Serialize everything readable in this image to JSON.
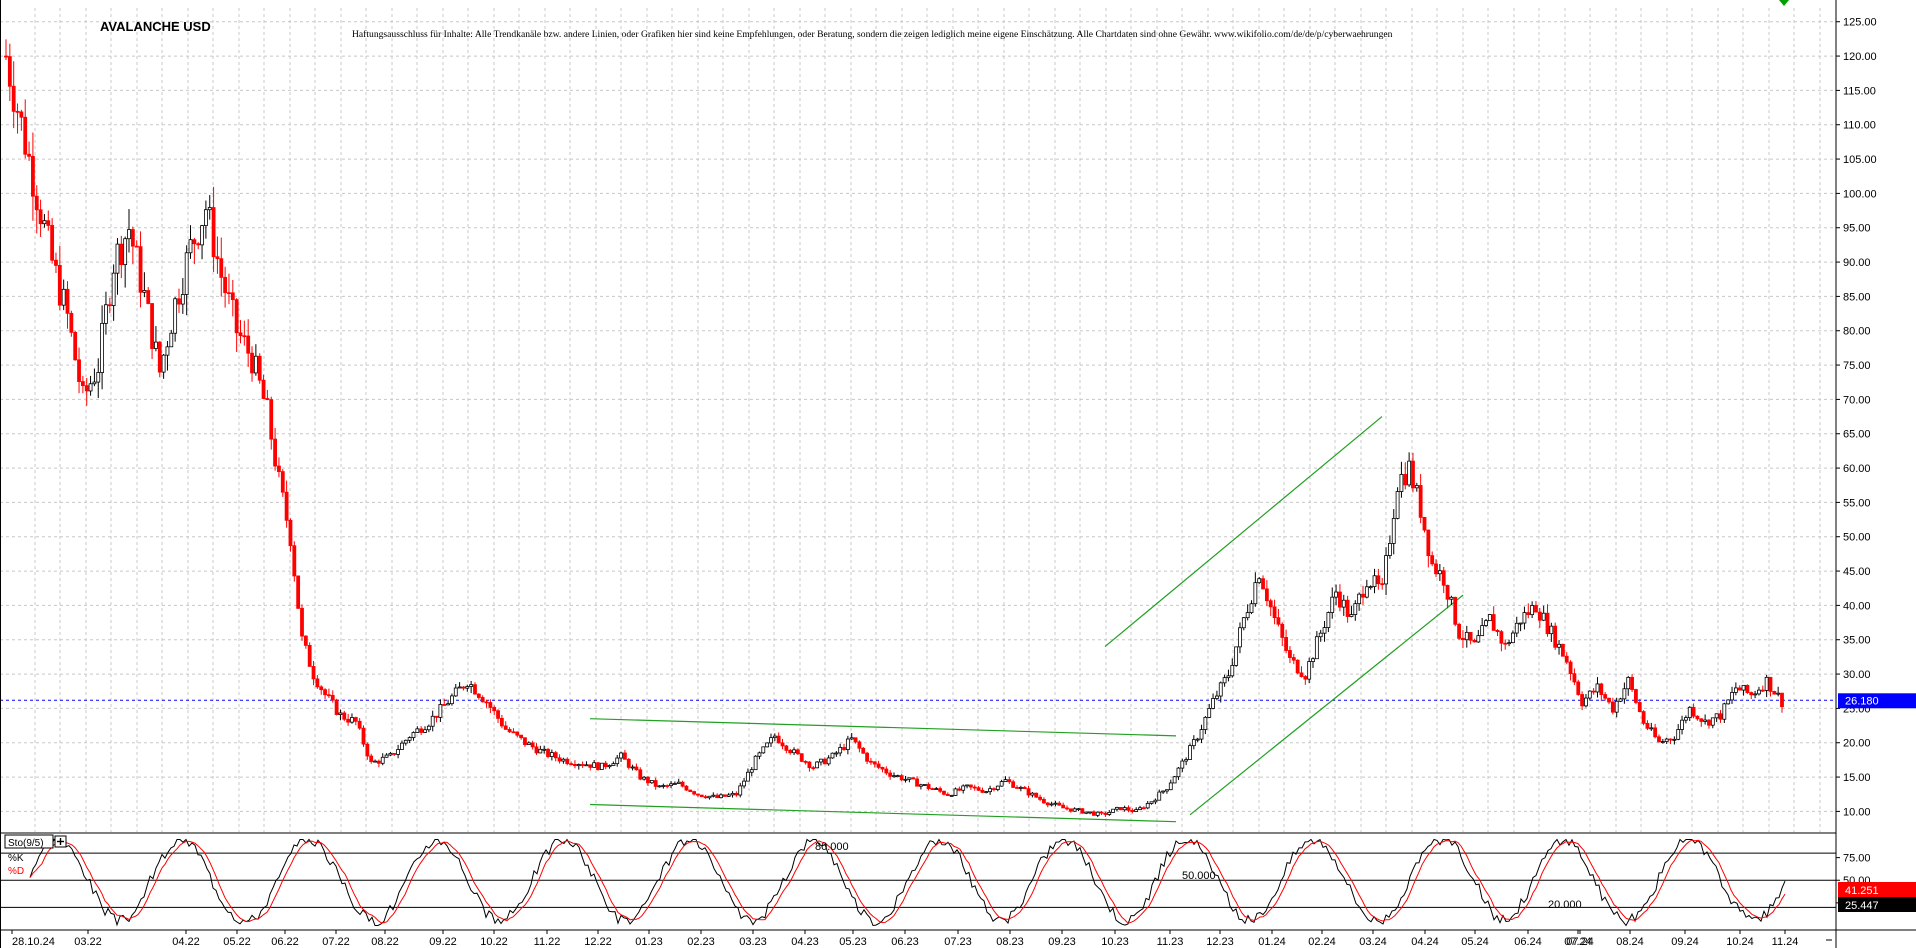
{
  "title": "AVALANCHE USD",
  "disclaimer": "Haftungsausschluss für Inhalte: Alle Trendkanäle bzw. andere Linien, oder Grafiken hier sind keine Empfehlungen, oder Beratung, sondern die zeigen lediglich meine eigene Einschätzung. Alle Chartdaten sind ohne Gewähr. www.wikifolio.com/de/de/p/cyberwaehrungen",
  "colors": {
    "up": "#000000",
    "down": "#ff0000",
    "trend": "#22a022",
    "grid": "#c8c8c8",
    "price_line": "#0000ff",
    "k_line": "#000000",
    "d_line": "#ff0000",
    "marker": "#00a000"
  },
  "chart_data": [
    {
      "type": "candlestick",
      "title": "AVALANCHE USD",
      "y_ticks": [
        "125.00",
        "120.00",
        "115.00",
        "110.00",
        "105.00",
        "100.00",
        "95.00",
        "90.00",
        "85.00",
        "80.00",
        "75.00",
        "70.00",
        "65.00",
        "60.00",
        "55.00",
        "50.00",
        "45.00",
        "40.00",
        "35.00",
        "30.00",
        "25.00",
        "20.00",
        "15.00",
        "10.00"
      ],
      "ylim": [
        7,
        127
      ],
      "x_ticks": [
        "28.10.24",
        "03.22",
        "04.22",
        "05.22",
        "06.22",
        "07.22",
        "08.22",
        "09.22",
        "10.22",
        "11.22",
        "12.22",
        "01.23",
        "02.23",
        "03.23",
        "04.23",
        "05.23",
        "06.23",
        "07.23",
        "08.23",
        "09.23",
        "10.23",
        "11.23",
        "12.23",
        "01.24",
        "02.24",
        "03.24",
        "04.24",
        "05.24",
        "06.24",
        "07.24",
        "07.24",
        "08.24",
        "09.24",
        "10.24",
        "11.24"
      ],
      "last_price": "26.180",
      "last_value": 26.18,
      "trend_lines": [
        {
          "from": [
            "12.22",
            23.5
          ],
          "to": [
            "11.23",
            21.0
          ]
        },
        {
          "from": [
            "12.22",
            11.0
          ],
          "to": [
            "11.23",
            8.5
          ]
        },
        {
          "from": [
            "10.23",
            34.0
          ],
          "to": [
            "03.24",
            67.5
          ]
        },
        {
          "from": [
            "11.23",
            9.5
          ],
          "to": [
            "04.24",
            41.5
          ]
        }
      ],
      "close_path": [
        [
          0,
          120
        ],
        [
          4,
          110
        ],
        [
          8,
          100
        ],
        [
          12,
          90
        ],
        [
          16,
          82
        ],
        [
          20,
          70
        ],
        [
          24,
          75
        ],
        [
          28,
          90
        ],
        [
          32,
          95
        ],
        [
          36,
          85
        ],
        [
          40,
          74
        ],
        [
          44,
          84
        ],
        [
          48,
          92
        ],
        [
          52,
          98
        ],
        [
          56,
          88
        ],
        [
          60,
          80
        ],
        [
          64,
          76
        ],
        [
          68,
          68
        ],
        [
          71,
          58
        ],
        [
          74,
          50
        ],
        [
          77,
          35
        ],
        [
          80,
          30
        ],
        [
          83,
          27
        ],
        [
          87,
          24
        ],
        [
          91,
          23
        ],
        [
          95,
          17
        ],
        [
          100,
          18
        ],
        [
          105,
          21
        ],
        [
          110,
          23
        ],
        [
          115,
          26
        ],
        [
          120,
          29
        ],
        [
          125,
          26
        ],
        [
          130,
          22
        ],
        [
          135,
          20
        ],
        [
          140,
          18.5
        ],
        [
          145,
          17.5
        ],
        [
          150,
          17
        ],
        [
          155,
          16.5
        ],
        [
          160,
          18
        ],
        [
          165,
          15
        ],
        [
          170,
          13.5
        ],
        [
          175,
          14
        ],
        [
          180,
          12.5
        ],
        [
          185,
          12
        ],
        [
          190,
          12.5
        ],
        [
          195,
          17.5
        ],
        [
          200,
          21
        ],
        [
          205,
          18.5
        ],
        [
          210,
          16.5
        ],
        [
          215,
          18
        ],
        [
          220,
          20.5
        ],
        [
          225,
          17
        ],
        [
          230,
          15.5
        ],
        [
          235,
          14.5
        ],
        [
          240,
          13.5
        ],
        [
          245,
          12.5
        ],
        [
          250,
          13.5
        ],
        [
          255,
          13
        ],
        [
          260,
          14.5
        ],
        [
          265,
          13
        ],
        [
          270,
          11.5
        ],
        [
          275,
          10.5
        ],
        [
          280,
          10
        ],
        [
          285,
          9.5
        ],
        [
          290,
          10.5
        ],
        [
          294,
          10
        ],
        [
          298,
          11.5
        ],
        [
          302,
          13.5
        ],
        [
          306,
          17
        ],
        [
          310,
          21
        ],
        [
          314,
          26
        ],
        [
          318,
          30
        ],
        [
          322,
          38
        ],
        [
          326,
          45
        ],
        [
          330,
          38
        ],
        [
          334,
          32
        ],
        [
          338,
          30
        ],
        [
          342,
          36
        ],
        [
          346,
          42
        ],
        [
          350,
          38
        ],
        [
          354,
          44
        ],
        [
          358,
          42
        ],
        [
          362,
          58
        ],
        [
          365,
          60
        ],
        [
          368,
          54
        ],
        [
          371,
          46
        ],
        [
          374,
          44
        ],
        [
          378,
          36
        ],
        [
          382,
          34
        ],
        [
          386,
          38
        ],
        [
          390,
          34
        ],
        [
          394,
          38
        ],
        [
          398,
          40
        ],
        [
          402,
          36
        ],
        [
          406,
          32
        ],
        [
          410,
          26
        ],
        [
          414,
          28
        ],
        [
          418,
          25
        ],
        [
          422,
          29
        ],
        [
          426,
          23
        ],
        [
          430,
          20
        ],
        [
          434,
          21
        ],
        [
          438,
          25
        ],
        [
          442,
          23
        ],
        [
          446,
          24
        ],
        [
          450,
          28
        ],
        [
          454,
          27
        ],
        [
          458,
          29
        ],
        [
          462,
          26
        ]
      ]
    },
    {
      "type": "line",
      "indicator": "Sto(9/5)",
      "series": [
        {
          "name": "%K"
        },
        {
          "name": "%D"
        }
      ],
      "levels": [
        "80.000",
        "50.000",
        "20.000"
      ],
      "y_ticks": [
        "75.00",
        "50.00",
        "25.00"
      ],
      "ylim": [
        -5,
        100
      ],
      "last_k": "41.251",
      "last_d": "25.447"
    }
  ]
}
